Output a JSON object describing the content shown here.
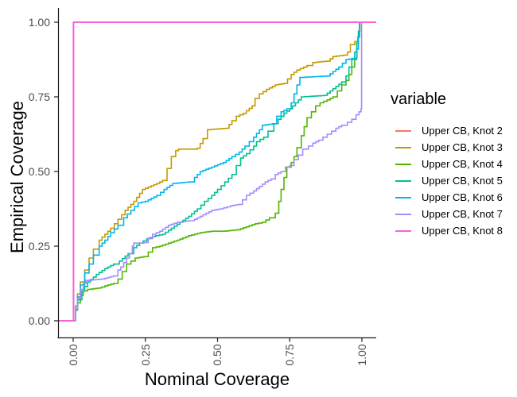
{
  "figure": {
    "background": "#FFFFFF",
    "axis_line_color": "#1a1a1a",
    "tick_label_color": "#4D4D4D"
  },
  "chart_data": {
    "type": "line",
    "subtype": "ecdf-step",
    "title": "",
    "xlabel": "Nominal Coverage",
    "ylabel": "Empirical Coverage",
    "xlim": [
      0,
      1
    ],
    "ylim": [
      0,
      1
    ],
    "x_ticks": [
      "0.00",
      "0.25",
      "0.50",
      "0.75",
      "1.00"
    ],
    "y_ticks": [
      "0.00",
      "0.25",
      "0.50",
      "0.75",
      "1.00"
    ],
    "grid": "off",
    "legend_position": "right",
    "legend_title": "variable",
    "series": [
      {
        "name": "Upper CB, Knot 2",
        "color": "#F8766D",
        "points": [
          [
            0,
            0
          ],
          [
            0.001,
            1
          ],
          [
            1,
            1
          ]
        ]
      },
      {
        "name": "Upper CB, Knot 3",
        "color": "#C49A00",
        "points": [
          [
            0,
            0
          ],
          [
            0.008,
            0.05
          ],
          [
            0.015,
            0.09
          ],
          [
            0.025,
            0.13
          ],
          [
            0.04,
            0.17
          ],
          [
            0.055,
            0.21
          ],
          [
            0.07,
            0.24
          ],
          [
            0.09,
            0.27
          ],
          [
            0.11,
            0.29
          ],
          [
            0.13,
            0.31
          ],
          [
            0.155,
            0.34
          ],
          [
            0.18,
            0.37
          ],
          [
            0.21,
            0.4
          ],
          [
            0.24,
            0.44
          ],
          [
            0.29,
            0.46
          ],
          [
            0.31,
            0.47
          ],
          [
            0.325,
            0.51
          ],
          [
            0.34,
            0.55
          ],
          [
            0.355,
            0.57
          ],
          [
            0.365,
            0.575
          ],
          [
            0.43,
            0.578
          ],
          [
            0.45,
            0.61
          ],
          [
            0.465,
            0.64
          ],
          [
            0.53,
            0.645
          ],
          [
            0.55,
            0.67
          ],
          [
            0.565,
            0.685
          ],
          [
            0.59,
            0.695
          ],
          [
            0.62,
            0.72
          ],
          [
            0.63,
            0.745
          ],
          [
            0.645,
            0.76
          ],
          [
            0.67,
            0.775
          ],
          [
            0.7,
            0.79
          ],
          [
            0.73,
            0.795
          ],
          [
            0.755,
            0.825
          ],
          [
            0.775,
            0.84
          ],
          [
            0.81,
            0.855
          ],
          [
            0.83,
            0.865
          ],
          [
            0.88,
            0.87
          ],
          [
            0.9,
            0.885
          ],
          [
            0.935,
            0.89
          ],
          [
            0.95,
            0.9
          ],
          [
            0.96,
            0.925
          ],
          [
            0.975,
            0.935
          ],
          [
            0.985,
            0.95
          ],
          [
            0.99,
            0.97
          ],
          [
            0.993,
            1
          ],
          [
            1,
            1
          ]
        ]
      },
      {
        "name": "Upper CB, Knot 4",
        "color": "#53B400",
        "points": [
          [
            0,
            0
          ],
          [
            0.008,
            0.035
          ],
          [
            0.015,
            0.06
          ],
          [
            0.025,
            0.085
          ],
          [
            0.035,
            0.1
          ],
          [
            0.05,
            0.105
          ],
          [
            0.09,
            0.11
          ],
          [
            0.12,
            0.12
          ],
          [
            0.14,
            0.125
          ],
          [
            0.155,
            0.14
          ],
          [
            0.17,
            0.165
          ],
          [
            0.185,
            0.19
          ],
          [
            0.2,
            0.2
          ],
          [
            0.215,
            0.21
          ],
          [
            0.245,
            0.215
          ],
          [
            0.26,
            0.23
          ],
          [
            0.275,
            0.245
          ],
          [
            0.3,
            0.25
          ],
          [
            0.33,
            0.26
          ],
          [
            0.36,
            0.27
          ],
          [
            0.4,
            0.285
          ],
          [
            0.44,
            0.295
          ],
          [
            0.48,
            0.3
          ],
          [
            0.52,
            0.3
          ],
          [
            0.57,
            0.305
          ],
          [
            0.6,
            0.315
          ],
          [
            0.63,
            0.325
          ],
          [
            0.655,
            0.33
          ],
          [
            0.68,
            0.345
          ],
          [
            0.7,
            0.36
          ],
          [
            0.712,
            0.4
          ],
          [
            0.72,
            0.44
          ],
          [
            0.73,
            0.48
          ],
          [
            0.74,
            0.515
          ],
          [
            0.755,
            0.53
          ],
          [
            0.765,
            0.55
          ],
          [
            0.775,
            0.58
          ],
          [
            0.79,
            0.62
          ],
          [
            0.8,
            0.65
          ],
          [
            0.81,
            0.68
          ],
          [
            0.825,
            0.7
          ],
          [
            0.84,
            0.72
          ],
          [
            0.855,
            0.73
          ],
          [
            0.88,
            0.74
          ],
          [
            0.9,
            0.75
          ],
          [
            0.915,
            0.77
          ],
          [
            0.93,
            0.79
          ],
          [
            0.945,
            0.805
          ],
          [
            0.955,
            0.825
          ],
          [
            0.965,
            0.85
          ],
          [
            0.975,
            0.875
          ],
          [
            0.982,
            0.91
          ],
          [
            0.988,
            0.96
          ],
          [
            0.992,
            1
          ],
          [
            1,
            1
          ]
        ]
      },
      {
        "name": "Upper CB, Knot 5",
        "color": "#00C094",
        "points": [
          [
            0,
            0
          ],
          [
            0.008,
            0.04
          ],
          [
            0.015,
            0.07
          ],
          [
            0.03,
            0.1
          ],
          [
            0.05,
            0.13
          ],
          [
            0.08,
            0.155
          ],
          [
            0.11,
            0.175
          ],
          [
            0.14,
            0.19
          ],
          [
            0.16,
            0.2
          ],
          [
            0.19,
            0.225
          ],
          [
            0.21,
            0.245
          ],
          [
            0.23,
            0.26
          ],
          [
            0.255,
            0.275
          ],
          [
            0.285,
            0.285
          ],
          [
            0.31,
            0.29
          ],
          [
            0.34,
            0.31
          ],
          [
            0.37,
            0.33
          ],
          [
            0.4,
            0.35
          ],
          [
            0.43,
            0.375
          ],
          [
            0.455,
            0.4
          ],
          [
            0.48,
            0.42
          ],
          [
            0.5,
            0.44
          ],
          [
            0.525,
            0.465
          ],
          [
            0.55,
            0.49
          ],
          [
            0.565,
            0.52
          ],
          [
            0.58,
            0.545
          ],
          [
            0.6,
            0.56
          ],
          [
            0.625,
            0.585
          ],
          [
            0.635,
            0.6
          ],
          [
            0.66,
            0.615
          ],
          [
            0.675,
            0.635
          ],
          [
            0.695,
            0.66
          ],
          [
            0.71,
            0.675
          ],
          [
            0.73,
            0.695
          ],
          [
            0.75,
            0.71
          ],
          [
            0.77,
            0.73
          ],
          [
            0.79,
            0.75
          ],
          [
            0.87,
            0.755
          ],
          [
            0.89,
            0.77
          ],
          [
            0.91,
            0.785
          ],
          [
            0.93,
            0.8
          ],
          [
            0.945,
            0.82
          ],
          [
            0.955,
            0.85
          ],
          [
            0.965,
            0.875
          ],
          [
            0.975,
            0.9
          ],
          [
            0.982,
            0.93
          ],
          [
            0.988,
            0.97
          ],
          [
            0.992,
            1
          ],
          [
            1,
            1
          ]
        ]
      },
      {
        "name": "Upper CB, Knot 6",
        "color": "#00B6EB",
        "points": [
          [
            0,
            0
          ],
          [
            0.008,
            0.04
          ],
          [
            0.015,
            0.08
          ],
          [
            0.025,
            0.12
          ],
          [
            0.04,
            0.16
          ],
          [
            0.055,
            0.19
          ],
          [
            0.07,
            0.22
          ],
          [
            0.09,
            0.25
          ],
          [
            0.11,
            0.27
          ],
          [
            0.13,
            0.295
          ],
          [
            0.155,
            0.32
          ],
          [
            0.175,
            0.345
          ],
          [
            0.2,
            0.37
          ],
          [
            0.225,
            0.395
          ],
          [
            0.25,
            0.4
          ],
          [
            0.29,
            0.42
          ],
          [
            0.315,
            0.44
          ],
          [
            0.345,
            0.46
          ],
          [
            0.4,
            0.465
          ],
          [
            0.42,
            0.48
          ],
          [
            0.44,
            0.5
          ],
          [
            0.48,
            0.515
          ],
          [
            0.52,
            0.53
          ],
          [
            0.55,
            0.55
          ],
          [
            0.575,
            0.565
          ],
          [
            0.595,
            0.585
          ],
          [
            0.61,
            0.6
          ],
          [
            0.625,
            0.615
          ],
          [
            0.645,
            0.64
          ],
          [
            0.655,
            0.655
          ],
          [
            0.69,
            0.66
          ],
          [
            0.705,
            0.685
          ],
          [
            0.72,
            0.7
          ],
          [
            0.74,
            0.71
          ],
          [
            0.755,
            0.73
          ],
          [
            0.765,
            0.76
          ],
          [
            0.775,
            0.79
          ],
          [
            0.785,
            0.815
          ],
          [
            0.88,
            0.82
          ],
          [
            0.9,
            0.835
          ],
          [
            0.92,
            0.85
          ],
          [
            0.945,
            0.875
          ],
          [
            0.975,
            0.88
          ],
          [
            0.983,
            0.91
          ],
          [
            0.988,
            0.95
          ],
          [
            0.992,
            1
          ],
          [
            1,
            1
          ]
        ]
      },
      {
        "name": "Upper CB, Knot 7",
        "color": "#A58AFF",
        "points": [
          [
            0,
            0
          ],
          [
            0.008,
            0.04
          ],
          [
            0.015,
            0.075
          ],
          [
            0.025,
            0.105
          ],
          [
            0.035,
            0.125
          ],
          [
            0.045,
            0.135
          ],
          [
            0.1,
            0.14
          ],
          [
            0.14,
            0.15
          ],
          [
            0.155,
            0.17
          ],
          [
            0.165,
            0.18
          ],
          [
            0.175,
            0.195
          ],
          [
            0.185,
            0.21
          ],
          [
            0.195,
            0.225
          ],
          [
            0.205,
            0.25
          ],
          [
            0.21,
            0.26
          ],
          [
            0.245,
            0.262
          ],
          [
            0.26,
            0.275
          ],
          [
            0.275,
            0.29
          ],
          [
            0.3,
            0.3
          ],
          [
            0.33,
            0.32
          ],
          [
            0.36,
            0.33
          ],
          [
            0.4,
            0.335
          ],
          [
            0.42,
            0.34
          ],
          [
            0.45,
            0.355
          ],
          [
            0.48,
            0.37
          ],
          [
            0.51,
            0.375
          ],
          [
            0.545,
            0.385
          ],
          [
            0.573,
            0.39
          ],
          [
            0.6,
            0.42
          ],
          [
            0.625,
            0.435
          ],
          [
            0.645,
            0.45
          ],
          [
            0.665,
            0.465
          ],
          [
            0.685,
            0.475
          ],
          [
            0.7,
            0.49
          ],
          [
            0.72,
            0.5
          ],
          [
            0.735,
            0.515
          ],
          [
            0.75,
            0.52
          ],
          [
            0.765,
            0.54
          ],
          [
            0.78,
            0.555
          ],
          [
            0.795,
            0.575
          ],
          [
            0.815,
            0.585
          ],
          [
            0.83,
            0.595
          ],
          [
            0.85,
            0.605
          ],
          [
            0.865,
            0.615
          ],
          [
            0.88,
            0.625
          ],
          [
            0.895,
            0.635
          ],
          [
            0.91,
            0.645
          ],
          [
            0.93,
            0.655
          ],
          [
            0.95,
            0.665
          ],
          [
            0.965,
            0.675
          ],
          [
            0.98,
            0.69
          ],
          [
            0.99,
            0.7
          ],
          [
            0.997,
            0.71
          ],
          [
            0.999,
            1
          ],
          [
            1,
            1
          ]
        ]
      },
      {
        "name": "Upper CB, Knot 8",
        "color": "#FB61D7",
        "points": [
          [
            0,
            0
          ],
          [
            0.001,
            1
          ],
          [
            1,
            1
          ]
        ]
      }
    ]
  }
}
